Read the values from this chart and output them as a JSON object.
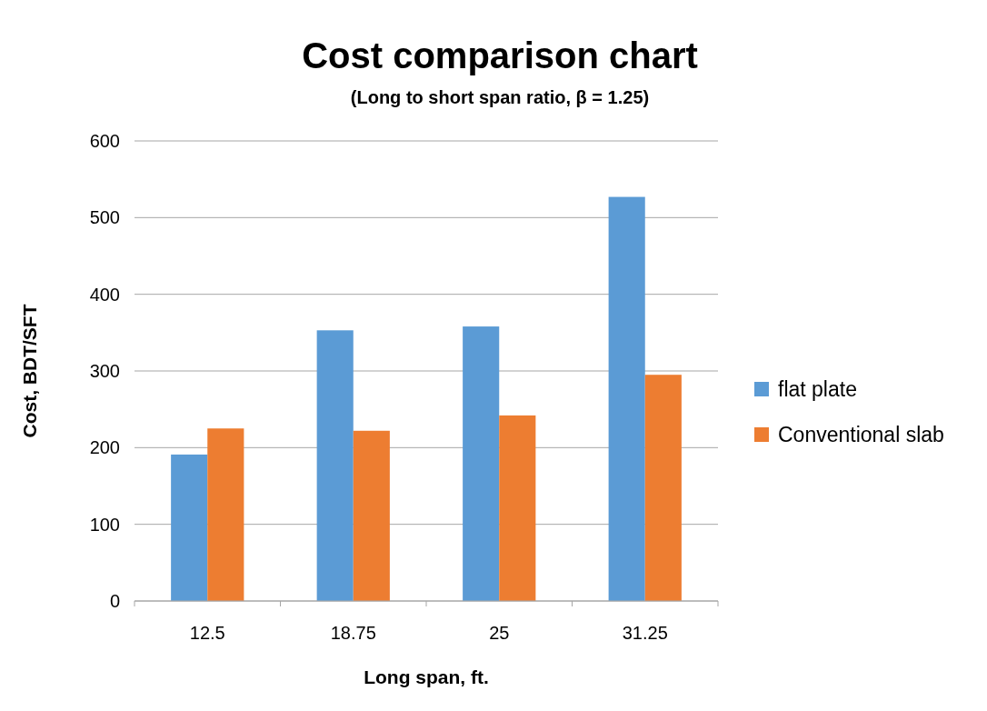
{
  "chart_data": {
    "type": "bar",
    "title": "Cost comparison chart",
    "subtitle": "(Long to short span ratio, β = 1.25)",
    "xlabel": "Long span, ft.",
    "ylabel": "Cost, BDT/SFT",
    "categories": [
      "12.5",
      "18.75",
      "25",
      "31.25"
    ],
    "series": [
      {
        "name": "flat plate",
        "color": "#5b9bd5",
        "values": [
          191,
          353,
          358,
          527
        ]
      },
      {
        "name": "Conventional slab",
        "color": "#ed7d31",
        "values": [
          225,
          222,
          242,
          295
        ]
      }
    ],
    "ylim": [
      0,
      600
    ],
    "yticks": [
      0,
      100,
      200,
      300,
      400,
      500,
      600
    ],
    "grid": "y",
    "legend": "right"
  }
}
